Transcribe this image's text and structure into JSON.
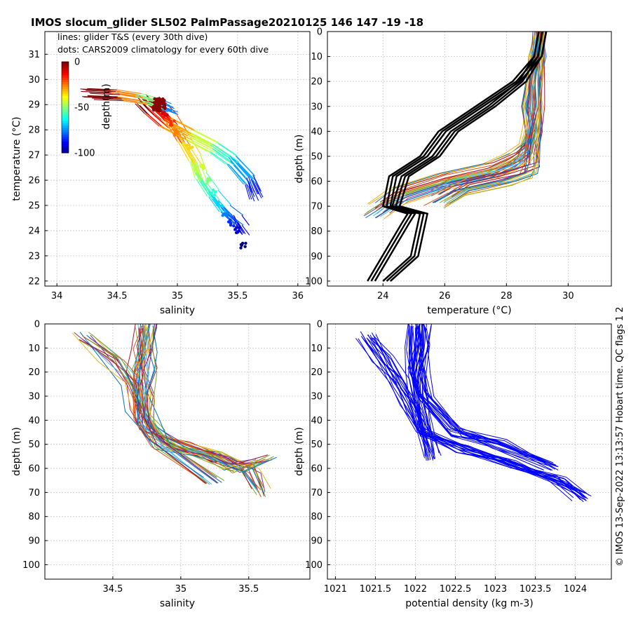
{
  "figure": {
    "title": "IMOS slocum_glider SL502 PalmPassage20210125 146  147  -19  -18",
    "side_note": "© IMOS 13-Sep-2022 13:13:57 Hobart time. QC flags 1  2"
  },
  "chart_data": [
    {
      "type": "scatter",
      "panel": "ts",
      "xlabel": "salinity",
      "ylabel": "temperature (°C)",
      "xlim": [
        33.9,
        36.1
      ],
      "ylim": [
        21.8,
        31.9
      ],
      "xticks": [
        34,
        34.5,
        35,
        35.5,
        36
      ],
      "yticks": [
        22,
        23,
        24,
        25,
        26,
        27,
        28,
        29,
        30,
        31
      ],
      "grid": true,
      "legend_text": [
        "lines: glider T&S (every 30th dive)",
        "dots: CARS2009 climatology for every 60th dive"
      ],
      "legend_placement": "top-left",
      "colorbar": {
        "label": "depth(m)",
        "range": [
          -100,
          0
        ],
        "ticks": [
          0,
          -50,
          -100
        ]
      },
      "series": [
        {
          "style": "lines",
          "color_by": "depth",
          "x": [
            34.8,
            34.85,
            34.95,
            35.05,
            35.15,
            35.2,
            35.3,
            35.4,
            35.5,
            35.55
          ],
          "y": [
            29.1,
            28.9,
            28.4,
            27.6,
            26.8,
            26.1,
            25.4,
            24.8,
            24.4,
            24.0
          ]
        },
        {
          "style": "lines",
          "color_by": "depth",
          "x": [
            34.7,
            34.78,
            34.9,
            35.1,
            35.3,
            35.45,
            35.6,
            35.65
          ],
          "y": [
            29.2,
            28.8,
            28.3,
            27.8,
            27.3,
            26.8,
            26.0,
            25.4
          ]
        },
        {
          "style": "lines",
          "color_by": "depth",
          "x": [
            34.25,
            34.5,
            34.7,
            34.85,
            34.95
          ],
          "y": [
            29.4,
            29.35,
            29.2,
            29.0,
            28.8
          ]
        },
        {
          "style": "dots",
          "color_by": "depth",
          "x": [
            34.85,
            34.9,
            34.95,
            35.0,
            35.1,
            35.2,
            35.25,
            35.3,
            35.35,
            35.4,
            35.45,
            35.5,
            35.55
          ],
          "y": [
            29.0,
            28.7,
            28.3,
            27.9,
            27.3,
            26.5,
            26.0,
            25.5,
            25.0,
            24.7,
            24.3,
            24.0,
            23.4
          ]
        }
      ]
    },
    {
      "type": "line",
      "panel": "temperature-depth",
      "xlabel": "temperature (°C)",
      "ylabel": "depth (m)",
      "xlim": [
        22.2,
        31.4
      ],
      "ylim": [
        102,
        0
      ],
      "xticks": [
        24,
        26,
        28,
        30
      ],
      "yticks": [
        0,
        10,
        20,
        30,
        40,
        50,
        60,
        70,
        80,
        90,
        100
      ],
      "grid": true,
      "series": [
        {
          "style": "glider",
          "x": [
            29.0,
            28.9,
            28.8,
            28.7,
            28.8,
            28.6,
            28.2,
            27.5,
            26.0,
            24.5,
            23.8
          ],
          "y": [
            0,
            10,
            20,
            30,
            40,
            48,
            52,
            56,
            60,
            66,
            72
          ]
        },
        {
          "style": "glider",
          "x": [
            29.1,
            29.1,
            29.0,
            29.0,
            28.9,
            28.8,
            28.7,
            28.0,
            26.5,
            25.8
          ],
          "y": [
            0,
            10,
            20,
            30,
            40,
            50,
            55,
            58,
            62,
            67
          ]
        },
        {
          "style": "climatology",
          "x": [
            29.05,
            28.9,
            28.2,
            27.0,
            25.8,
            25.2,
            24.2,
            24.0,
            24.8,
            24.6,
            23.5
          ],
          "y": [
            0,
            10,
            20,
            30,
            40,
            50,
            58,
            70,
            73,
            77,
            100
          ]
        },
        {
          "style": "climatology",
          "x": [
            29.05,
            28.9,
            28.4,
            27.4,
            26.2,
            25.6,
            24.6,
            24.3,
            25.2,
            24.9,
            24.0
          ],
          "y": [
            0,
            10,
            20,
            30,
            40,
            50,
            58,
            70,
            73,
            90,
            100
          ]
        }
      ]
    },
    {
      "type": "line",
      "panel": "salinity-depth",
      "xlabel": "salinity",
      "ylabel": "depth (m)",
      "xlim": [
        34.0,
        35.95
      ],
      "ylim": [
        106,
        0
      ],
      "xticks": [
        34.5,
        35,
        35.5
      ],
      "yticks": [
        0,
        10,
        20,
        30,
        40,
        50,
        60,
        70,
        80,
        90,
        100
      ],
      "grid": true,
      "series": [
        {
          "x": [
            34.75,
            34.72,
            34.7,
            34.72,
            34.75,
            34.8,
            35.0,
            35.3,
            35.5,
            35.6
          ],
          "y": [
            0,
            10,
            20,
            30,
            40,
            45,
            50,
            55,
            60,
            70
          ]
        },
        {
          "x": [
            34.3,
            34.5,
            34.65,
            34.7,
            34.8,
            34.9,
            35.2,
            35.4,
            35.65
          ],
          "y": [
            5,
            15,
            25,
            35,
            45,
            50,
            55,
            60,
            56
          ]
        },
        {
          "x": [
            34.78,
            34.77,
            34.75,
            34.74,
            34.75,
            34.85,
            35.25
          ],
          "y": [
            0,
            10,
            20,
            30,
            40,
            50,
            65
          ]
        }
      ]
    },
    {
      "type": "line",
      "panel": "density-depth",
      "xlabel": "potential density (kg m-3)",
      "ylabel": "depth (m)",
      "xlim": [
        1020.9,
        1024.45
      ],
      "ylim": [
        106,
        0
      ],
      "xticks": [
        1021,
        1021.5,
        1022,
        1022.5,
        1023,
        1023.5,
        1024
      ],
      "yticks": [
        0,
        10,
        20,
        30,
        40,
        50,
        60,
        70,
        80,
        90,
        100
      ],
      "grid": true,
      "series": [
        {
          "x": [
            1021.4,
            1021.6,
            1021.8,
            1021.95,
            1022.1,
            1022.6,
            1023.2,
            1023.8,
            1024.1
          ],
          "y": [
            5,
            15,
            25,
            35,
            45,
            52,
            58,
            65,
            72
          ]
        },
        {
          "x": [
            1022.0,
            1022.0,
            1022.0,
            1022.05,
            1022.1,
            1022.2
          ],
          "y": [
            0,
            10,
            20,
            30,
            40,
            55
          ]
        },
        {
          "x": [
            1022.1,
            1022.1,
            1022.05,
            1022.1,
            1022.5,
            1023.0,
            1023.7
          ],
          "y": [
            0,
            10,
            20,
            30,
            45,
            50,
            59
          ]
        }
      ]
    }
  ]
}
